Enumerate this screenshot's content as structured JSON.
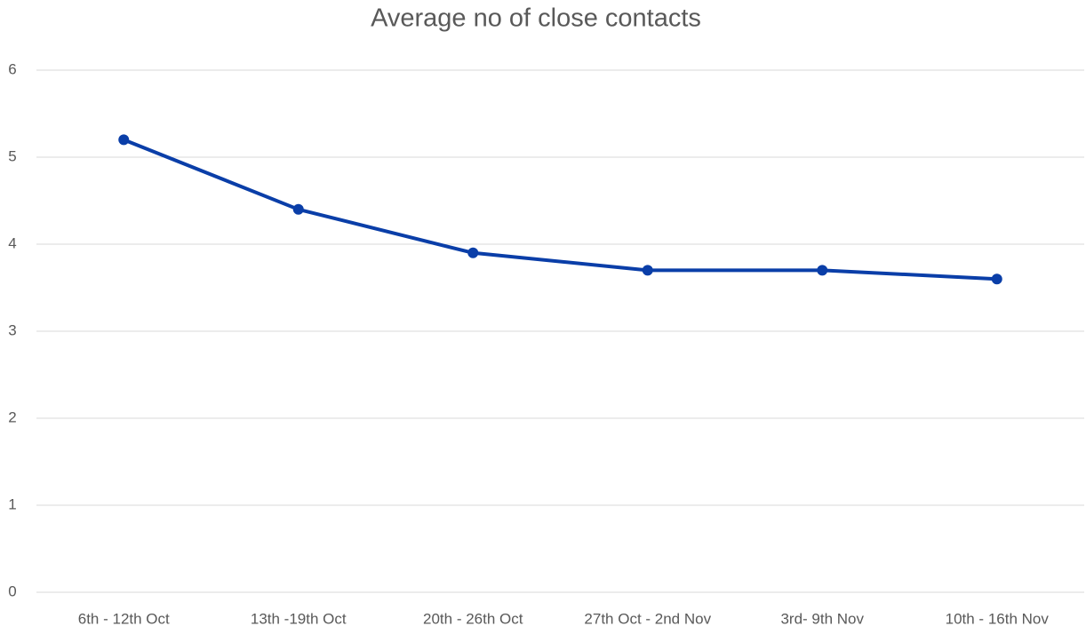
{
  "chart_data": {
    "type": "line",
    "title": "Average no of close contacts",
    "categories": [
      "6th - 12th Oct",
      "13th -19th Oct",
      "20th - 26th Oct",
      "27th Oct - 2nd Nov",
      "3rd- 9th Nov",
      "10th - 16th Nov"
    ],
    "series": [
      {
        "name": "Average no of close contacts",
        "color": "#0a3ea8",
        "values": [
          5.2,
          4.4,
          3.9,
          3.7,
          3.7,
          3.6
        ]
      }
    ],
    "ylim": [
      0,
      6
    ],
    "yticks": [
      0,
      1,
      2,
      3,
      4,
      5,
      6
    ],
    "grid": true
  }
}
